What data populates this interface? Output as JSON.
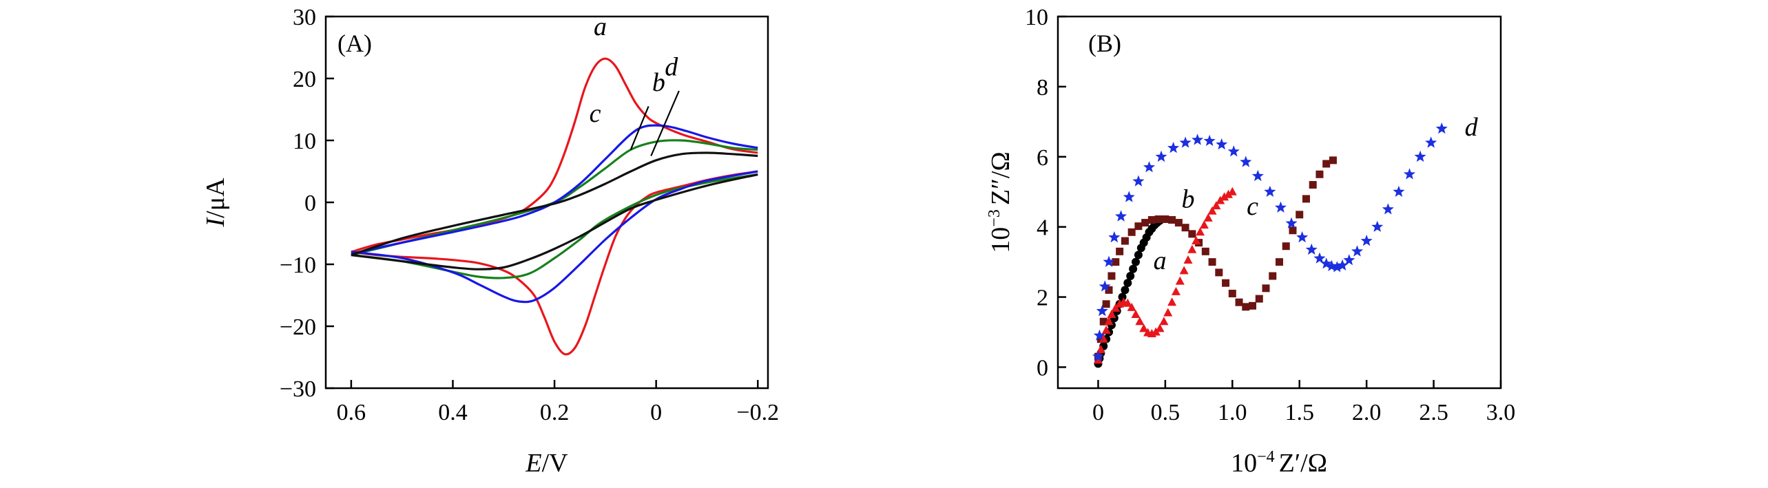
{
  "chart_data": [
    {
      "type": "line",
      "panel_label": "(A)",
      "xlabel_var": "E",
      "xlabel_unit": "/V",
      "ylabel_var": "I",
      "ylabel_unit": "/μA",
      "xlim": [
        0.65,
        -0.22
      ],
      "ylim": [
        -30,
        30
      ],
      "x_ticks": [
        0.6,
        0.4,
        0.2,
        0,
        -0.2
      ],
      "x_tick_labels": [
        "0.6",
        "0.4",
        "0.2",
        "0",
        "−0.2"
      ],
      "y_ticks": [
        30,
        20,
        10,
        0,
        -10,
        -20,
        -30
      ],
      "y_tick_labels": [
        "30",
        "20",
        "10",
        "0",
        "−10",
        "−20",
        "−30"
      ],
      "series": [
        {
          "name": "a",
          "color": "#e8161b",
          "forward": {
            "x": [
              0.6,
              0.55,
              0.5,
              0.45,
              0.4,
              0.35,
              0.3,
              0.26,
              0.22,
              0.2,
              0.18,
              0.16,
              0.14,
              0.12,
              0.1,
              0.08,
              0.06,
              0.04,
              0.02,
              0.0,
              -0.05,
              -0.1,
              -0.15,
              -0.2
            ],
            "y": [
              -8,
              -6.8,
              -6,
              -5.2,
              -4.5,
              -3.6,
              -2.6,
              -1.2,
              1.5,
              4,
              8,
              13,
              18.5,
              22,
              23.2,
              22,
              19,
              16,
              14,
              12.8,
              11,
              9.8,
              8.6,
              8
            ]
          },
          "reverse": {
            "x": [
              -0.2,
              -0.15,
              -0.1,
              -0.05,
              0.0,
              0.02,
              0.04,
              0.06,
              0.08,
              0.1,
              0.12,
              0.14,
              0.16,
              0.18,
              0.2,
              0.22,
              0.24,
              0.27,
              0.3,
              0.35,
              0.4,
              0.45,
              0.5,
              0.55,
              0.6
            ],
            "y": [
              5,
              4.4,
              3.6,
              2.6,
              1.6,
              0.8,
              -0.5,
              -2.5,
              -5.5,
              -10,
              -15,
              -20,
              -23.5,
              -24.5,
              -22.5,
              -18.5,
              -15,
              -12.5,
              -11,
              -9.8,
              -9.3,
              -9,
              -8.8,
              -8.5,
              -8
            ]
          },
          "label_at": [
            0.11,
            27
          ]
        },
        {
          "name": "b",
          "color": "#17801c",
          "forward": {
            "x": [
              0.6,
              0.5,
              0.4,
              0.3,
              0.2,
              0.15,
              0.1,
              0.05,
              0.0,
              -0.05,
              -0.1,
              -0.15,
              -0.2
            ],
            "y": [
              -8.5,
              -6.5,
              -4.5,
              -2.5,
              0,
              2.5,
              5.5,
              8.5,
              9.8,
              10,
              9.5,
              8.8,
              8.5
            ]
          },
          "reverse": {
            "x": [
              -0.2,
              -0.1,
              0.0,
              0.1,
              0.15,
              0.2,
              0.25,
              0.3,
              0.35,
              0.4,
              0.5,
              0.6
            ],
            "y": [
              4.5,
              3.2,
              1.2,
              -2.8,
              -6,
              -9,
              -11.5,
              -12.2,
              -12,
              -11.2,
              -9.5,
              -8.5
            ]
          },
          "label_at": [
            -0.005,
            18
          ]
        },
        {
          "name": "c",
          "color": "#1717e6",
          "forward": {
            "x": [
              0.6,
              0.5,
              0.4,
              0.3,
              0.25,
              0.2,
              0.15,
              0.1,
              0.05,
              0.02,
              -0.02,
              -0.06,
              -0.1,
              -0.15,
              -0.2
            ],
            "y": [
              -8.3,
              -6.5,
              -4.8,
              -3,
              -1.8,
              0,
              3,
              7,
              11,
              12.3,
              12.3,
              11.5,
              10.5,
              9.5,
              8.8
            ]
          },
          "reverse": {
            "x": [
              -0.2,
              -0.1,
              -0.05,
              0.0,
              0.05,
              0.1,
              0.15,
              0.2,
              0.24,
              0.27,
              0.3,
              0.35,
              0.4,
              0.5,
              0.6
            ],
            "y": [
              5,
              3.5,
              2.2,
              0.5,
              -2.5,
              -6,
              -10,
              -13.8,
              -15.8,
              -16,
              -15.2,
              -13.2,
              -11.3,
              -9,
              -8
            ]
          },
          "label_at": [
            0.12,
            13
          ]
        },
        {
          "name": "d",
          "color": "#111111",
          "forward": {
            "x": [
              0.6,
              0.5,
              0.4,
              0.3,
              0.2,
              0.15,
              0.1,
              0.05,
              0.0,
              -0.05,
              -0.1,
              -0.15,
              -0.2
            ],
            "y": [
              -8.5,
              -5.8,
              -3.8,
              -2,
              -0.2,
              1.2,
              3,
              5,
              6.8,
              7.8,
              8,
              7.8,
              7.5
            ]
          },
          "reverse": {
            "x": [
              -0.2,
              -0.1,
              0.0,
              0.05,
              0.1,
              0.15,
              0.2,
              0.25,
              0.3,
              0.35,
              0.4,
              0.5,
              0.6
            ],
            "y": [
              4.5,
              2.7,
              0.4,
              -1,
              -3.2,
              -5.5,
              -7.5,
              -9.2,
              -10.5,
              -10.8,
              -10.5,
              -9.5,
              -8.5
            ]
          },
          "label_at": [
            -0.03,
            20.5
          ]
        }
      ],
      "leaders": [
        {
          "name": "b",
          "from": [
            0.015,
            15.5
          ],
          "to": [
            0.05,
            8.5
          ]
        },
        {
          "name": "d",
          "from": [
            -0.045,
            18
          ],
          "to": [
            0.01,
            7.5
          ]
        }
      ]
    },
    {
      "type": "scatter",
      "panel_label": "(B)",
      "xlabel_prefix": "10",
      "xlabel_exp": "−4",
      "xlabel_var": "Z′/Ω",
      "ylabel_prefix": "10",
      "ylabel_exp": "−3",
      "ylabel_var": "Z″/Ω",
      "xlim": [
        -0.3,
        3.0
      ],
      "ylim": [
        -0.6,
        10
      ],
      "x_ticks": [
        0,
        0.5,
        1.0,
        1.5,
        2.0,
        2.5,
        3.0
      ],
      "x_tick_labels": [
        "0",
        "0.5",
        "1.0",
        "1.5",
        "2.0",
        "2.5",
        "3.0"
      ],
      "y_ticks": [
        0,
        2,
        4,
        6,
        8,
        10
      ],
      "y_tick_labels": [
        "0",
        "2",
        "4",
        "6",
        "8",
        "10"
      ],
      "series": [
        {
          "name": "a",
          "color": "#000000",
          "marker": "circle",
          "x": [
            0.0,
            0.01,
            0.02,
            0.04,
            0.06,
            0.08,
            0.1,
            0.12,
            0.14,
            0.16,
            0.18,
            0.2,
            0.22,
            0.24,
            0.26,
            0.28,
            0.3,
            0.32,
            0.34,
            0.36,
            0.38,
            0.4,
            0.42,
            0.44,
            0.46
          ],
          "y": [
            0.1,
            0.25,
            0.4,
            0.6,
            0.8,
            1.0,
            1.2,
            1.4,
            1.6,
            1.8,
            2.0,
            2.2,
            2.4,
            2.6,
            2.8,
            3.0,
            3.2,
            3.4,
            3.55,
            3.7,
            3.85,
            3.95,
            4.05,
            4.12,
            4.18
          ],
          "label_at": [
            0.46,
            2.8
          ]
        },
        {
          "name": "b",
          "color": "#6b1512",
          "marker": "square",
          "x": [
            0.0,
            0.02,
            0.04,
            0.06,
            0.08,
            0.1,
            0.13,
            0.16,
            0.2,
            0.25,
            0.3,
            0.35,
            0.4,
            0.45,
            0.5,
            0.55,
            0.6,
            0.65,
            0.7,
            0.75,
            0.8,
            0.85,
            0.9,
            0.95,
            1.0,
            1.05,
            1.1,
            1.15,
            1.2,
            1.25,
            1.3,
            1.35,
            1.4,
            1.45,
            1.5,
            1.55,
            1.6,
            1.65,
            1.7,
            1.75
          ],
          "y": [
            0.3,
            0.8,
            1.3,
            1.8,
            2.2,
            2.6,
            3.0,
            3.3,
            3.6,
            3.85,
            4.02,
            4.12,
            4.2,
            4.22,
            4.22,
            4.2,
            4.12,
            3.98,
            3.8,
            3.55,
            3.3,
            3.0,
            2.7,
            2.4,
            2.1,
            1.85,
            1.72,
            1.75,
            1.95,
            2.25,
            2.6,
            3.0,
            3.45,
            3.9,
            4.35,
            4.8,
            5.2,
            5.5,
            5.8,
            5.9
          ],
          "label_at": [
            0.67,
            4.55
          ]
        },
        {
          "name": "c",
          "color": "#e8161b",
          "marker": "triangle",
          "x": [
            0.0,
            0.02,
            0.04,
            0.06,
            0.08,
            0.1,
            0.13,
            0.16,
            0.19,
            0.22,
            0.25,
            0.28,
            0.31,
            0.34,
            0.37,
            0.4,
            0.43,
            0.46,
            0.49,
            0.52,
            0.55,
            0.58,
            0.61,
            0.64,
            0.67,
            0.7,
            0.73,
            0.76,
            0.79,
            0.82,
            0.85,
            0.88,
            0.91,
            0.94,
            0.97,
            1.0
          ],
          "y": [
            0.2,
            0.5,
            0.8,
            1.05,
            1.3,
            1.5,
            1.68,
            1.8,
            1.85,
            1.82,
            1.7,
            1.5,
            1.3,
            1.1,
            0.98,
            0.95,
            1.0,
            1.1,
            1.3,
            1.55,
            1.85,
            2.15,
            2.45,
            2.75,
            3.05,
            3.35,
            3.6,
            3.85,
            4.05,
            4.25,
            4.45,
            4.6,
            4.75,
            4.85,
            4.92,
            5.0
          ],
          "label_at": [
            1.15,
            4.35
          ]
        },
        {
          "name": "d",
          "color": "#1c2fe0",
          "marker": "star",
          "x": [
            0.0,
            0.01,
            0.03,
            0.05,
            0.08,
            0.12,
            0.17,
            0.23,
            0.3,
            0.38,
            0.47,
            0.56,
            0.65,
            0.74,
            0.83,
            0.92,
            1.01,
            1.1,
            1.19,
            1.28,
            1.36,
            1.44,
            1.52,
            1.59,
            1.65,
            1.7,
            1.74,
            1.78,
            1.82,
            1.87,
            1.93,
            2.0,
            2.08,
            2.16,
            2.24,
            2.32,
            2.4,
            2.48,
            2.56
          ],
          "y": [
            0.3,
            0.9,
            1.6,
            2.3,
            3.0,
            3.7,
            4.3,
            4.85,
            5.3,
            5.7,
            6.0,
            6.25,
            6.4,
            6.48,
            6.45,
            6.35,
            6.15,
            5.85,
            5.45,
            5.0,
            4.55,
            4.1,
            3.7,
            3.35,
            3.1,
            2.95,
            2.88,
            2.85,
            2.9,
            3.05,
            3.3,
            3.6,
            4.0,
            4.5,
            5.0,
            5.5,
            6.0,
            6.4,
            6.8
          ],
          "label_at": [
            2.78,
            6.6
          ]
        }
      ]
    }
  ]
}
